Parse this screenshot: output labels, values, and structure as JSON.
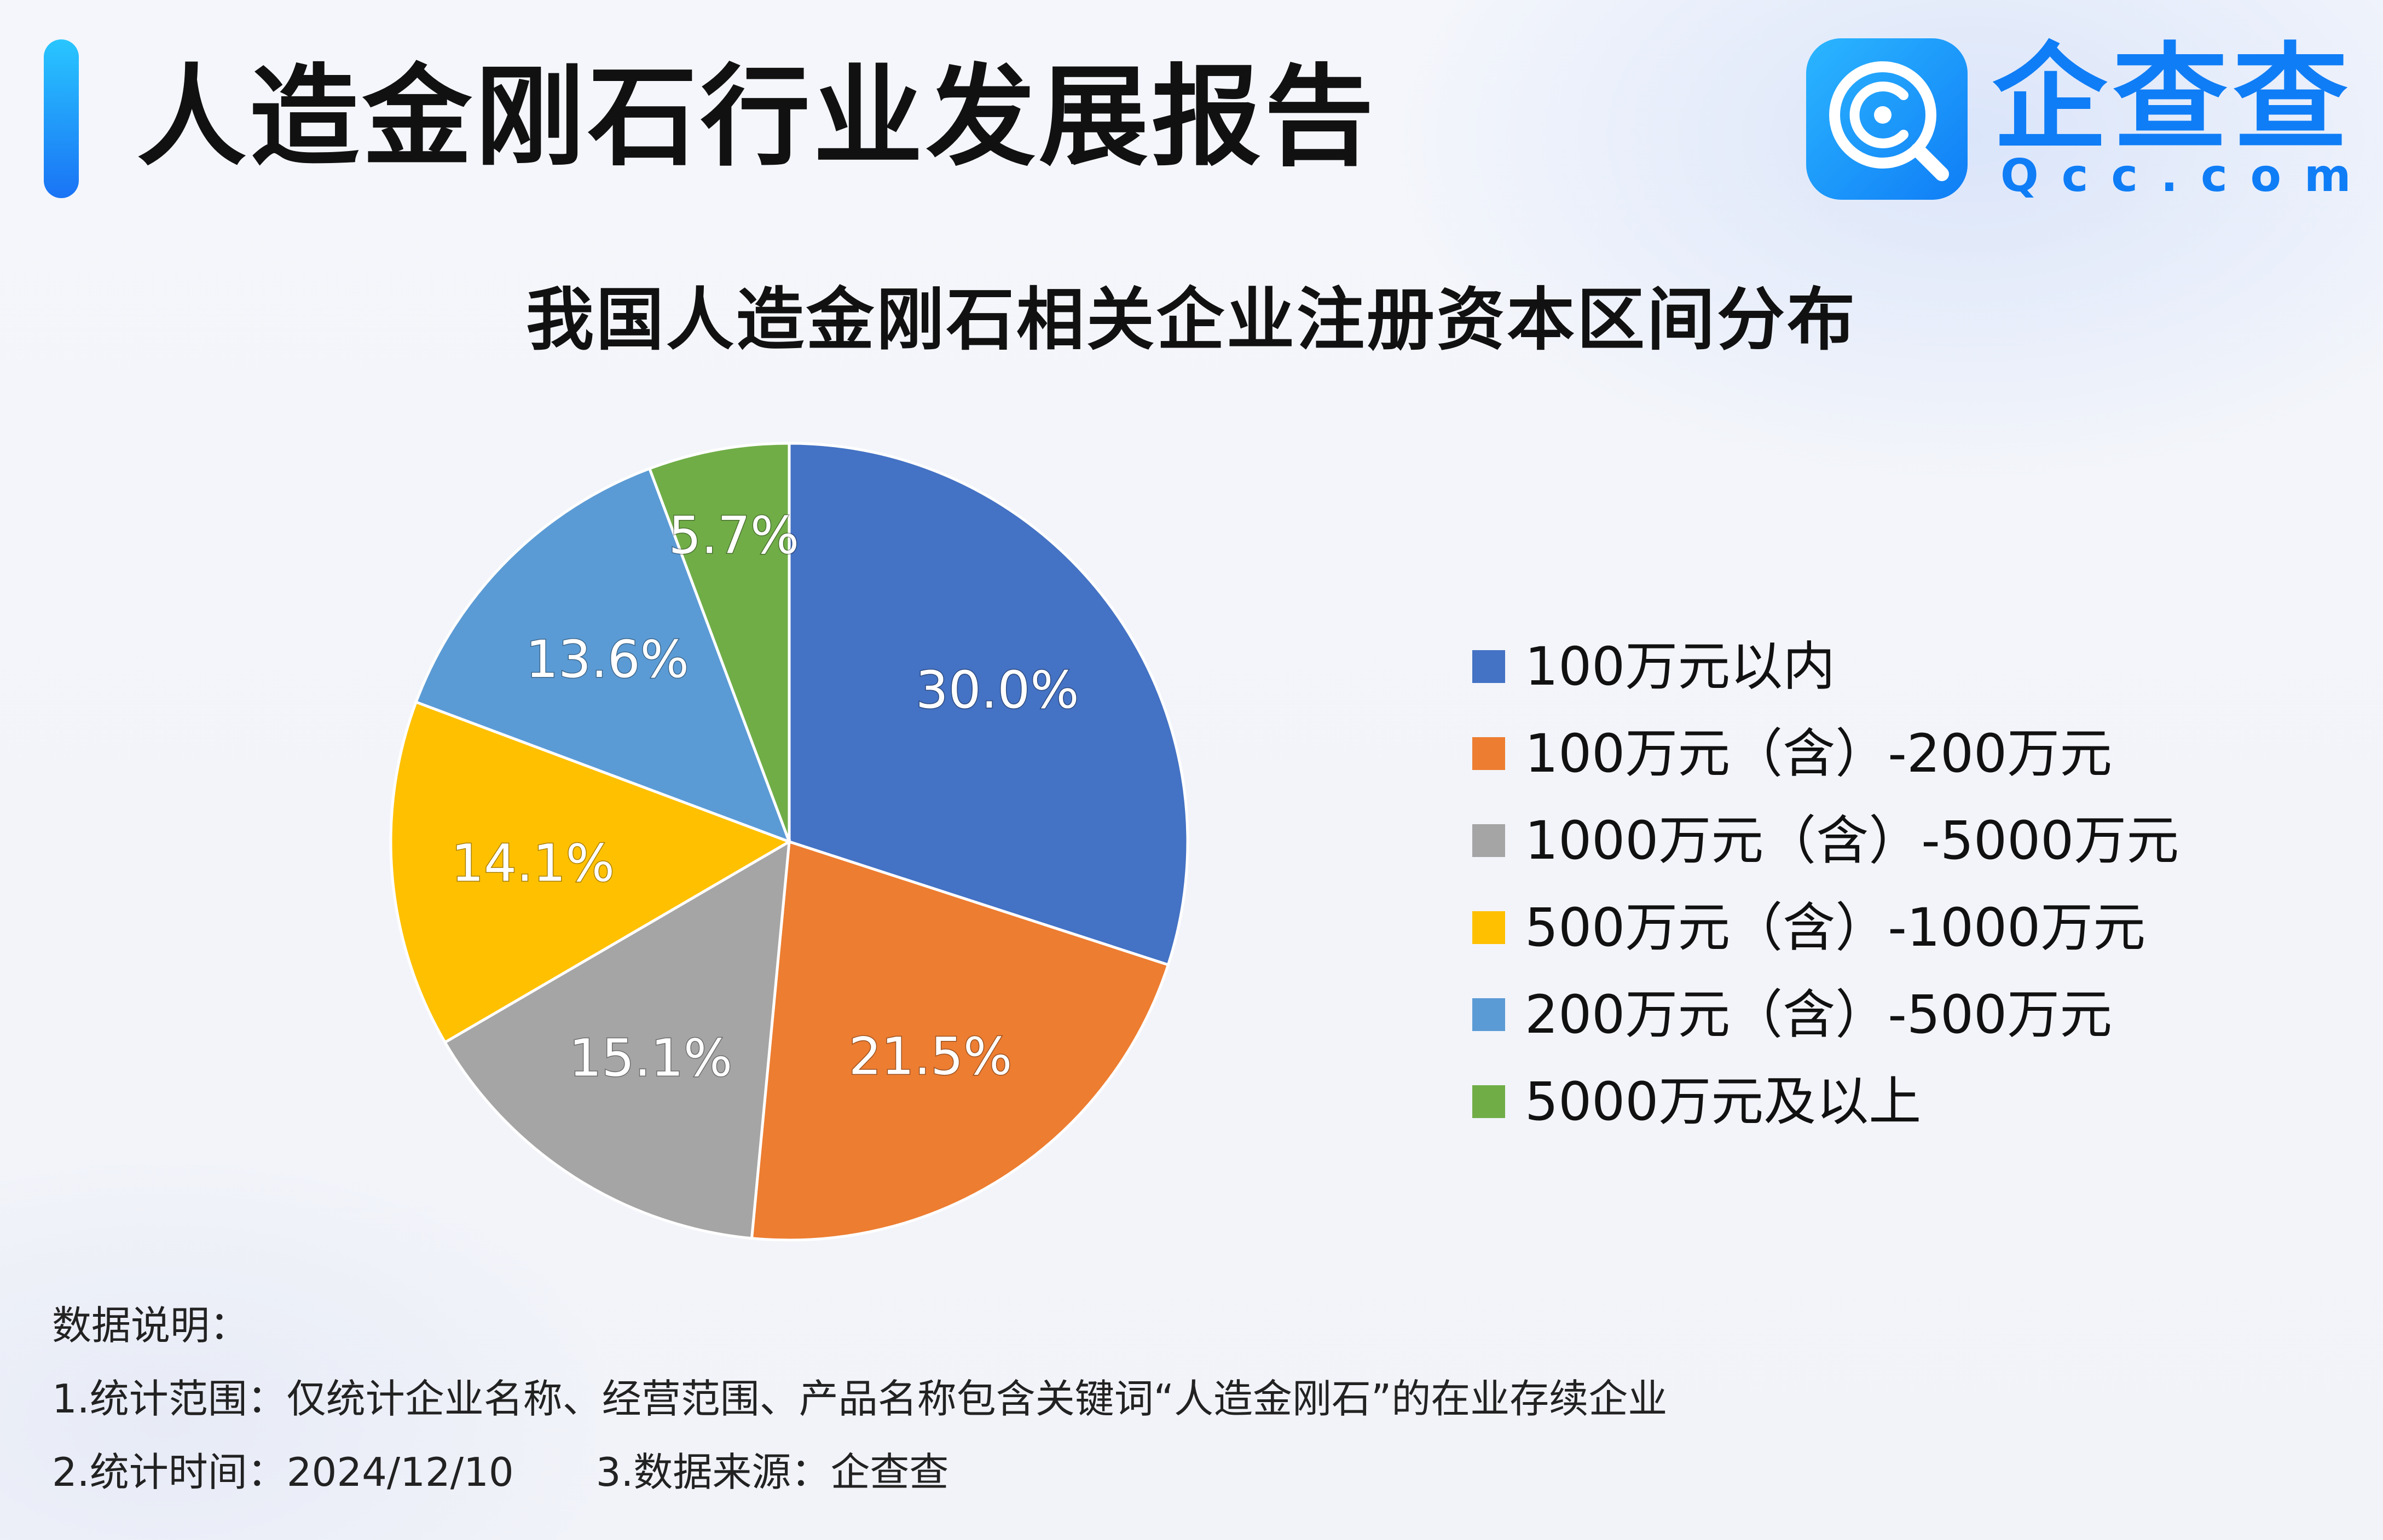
{
  "header": {
    "title": "人造金刚石行业发展报告",
    "brand_name": "企查查",
    "brand_domain": "Qcc.com"
  },
  "chart_data": {
    "type": "pie",
    "title": "我国人造金刚石相关企业注册资本区间分布",
    "legend_position": "right",
    "slices": [
      {
        "label": "100万元以内",
        "value": 30.0,
        "value_label": "30.0%",
        "color": "#4472C4"
      },
      {
        "label": "100万元（含）-200万元",
        "value": 21.5,
        "value_label": "21.5%",
        "color": "#ED7D31"
      },
      {
        "label": "1000万元（含）-5000万元",
        "value": 15.1,
        "value_label": "15.1%",
        "color": "#A5A5A5"
      },
      {
        "label": "500万元（含）-1000万元",
        "value": 14.1,
        "value_label": "14.1%",
        "color": "#FFC000"
      },
      {
        "label": "200万元（含）-500万元",
        "value": 13.6,
        "value_label": "13.6%",
        "color": "#5B9BD5"
      },
      {
        "label": "5000万元及以上",
        "value": 5.7,
        "value_label": "5.7%",
        "color": "#70AD47"
      }
    ]
  },
  "notes": {
    "heading": "数据说明：",
    "scope": "1.统计范围：仅统计企业名称、经营范围、产品名称包含关键词“人造金刚石”的在业存续企业",
    "time": "2.统计时间：2024/12/10",
    "source": "3.数据来源：企查查"
  },
  "icons": {
    "brand_logo": "qcc-magnifier-logo-icon"
  }
}
